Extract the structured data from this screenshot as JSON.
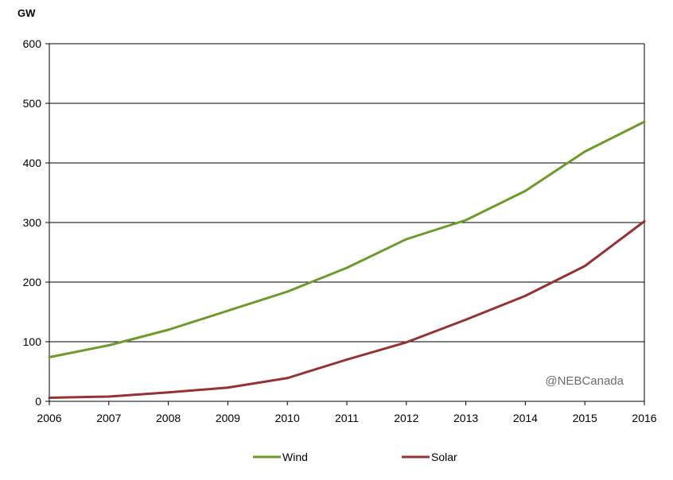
{
  "chart_data": {
    "type": "line",
    "unit_label": "GW",
    "x": [
      "2006",
      "2007",
      "2008",
      "2009",
      "2010",
      "2011",
      "2012",
      "2013",
      "2014",
      "2015",
      "2016"
    ],
    "series": [
      {
        "name": "Wind",
        "color": "#6e9a2b",
        "values": [
          74,
          94,
          120,
          152,
          184,
          224,
          272,
          304,
          353,
          419,
          469
        ]
      },
      {
        "name": "Solar",
        "color": "#953234",
        "values": [
          6,
          8,
          15,
          23,
          39,
          70,
          99,
          137,
          177,
          227,
          302
        ]
      }
    ],
    "ylim": [
      0,
      600
    ],
    "yticks": [
      0,
      100,
      200,
      300,
      400,
      500,
      600
    ],
    "grid": true,
    "legend_position": "bottom",
    "watermark": "@NEBCanada"
  }
}
